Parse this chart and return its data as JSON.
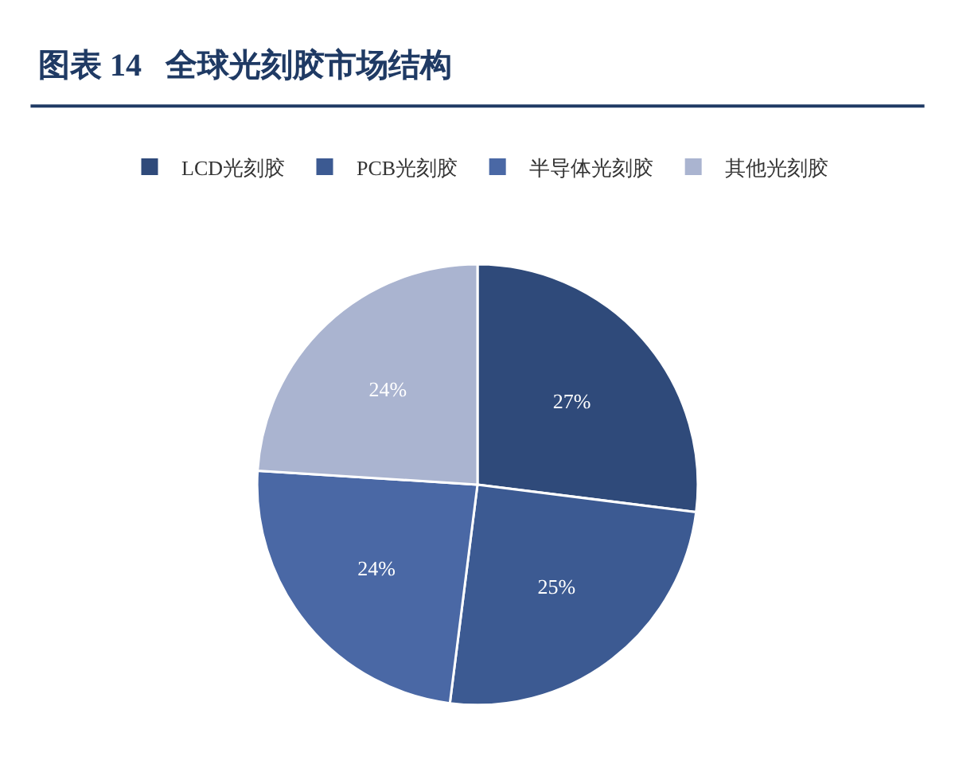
{
  "chart_data": {
    "type": "pie",
    "title": "图表 14   全球光刻胶市场结构",
    "categories": [
      "LCD光刻胶",
      "PCB光刻胶",
      "半导体光刻胶",
      "其他光刻胶"
    ],
    "values": [
      27,
      25,
      24,
      24
    ],
    "value_labels": [
      "27%",
      "25%",
      "24%",
      "24%"
    ],
    "colors": [
      "#2f4a7a",
      "#3c5a92",
      "#4a68a5",
      "#aab4d0"
    ],
    "legend": "top"
  }
}
